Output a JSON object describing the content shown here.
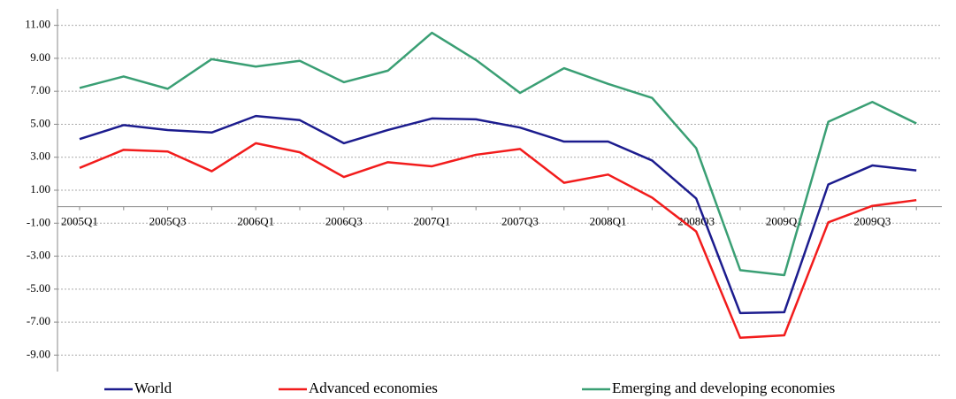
{
  "chart_data": {
    "type": "line",
    "categories": [
      "2005Q1",
      null,
      "2005Q3",
      null,
      "2006Q1",
      null,
      "2006Q3",
      null,
      "2007Q1",
      null,
      "2007Q3",
      null,
      "2008Q1",
      null,
      "2008Q3",
      null,
      "2009Q1",
      null,
      "2009Q3",
      null
    ],
    "series": [
      {
        "name": "World",
        "color": "#1c1c8e",
        "values": [
          4.1,
          4.95,
          4.65,
          4.5,
          5.5,
          5.25,
          3.85,
          4.65,
          5.35,
          5.3,
          4.8,
          3.95,
          3.95,
          2.8,
          0.5,
          -6.45,
          -6.4,
          1.35,
          2.5,
          2.2
        ]
      },
      {
        "name": "Advanced economies",
        "color": "#f21c1c",
        "values": [
          2.35,
          3.45,
          3.35,
          2.15,
          3.85,
          3.3,
          1.8,
          2.7,
          2.45,
          3.15,
          3.5,
          1.45,
          1.95,
          0.55,
          -1.5,
          -7.95,
          -7.8,
          -0.95,
          0.05,
          0.4
        ]
      },
      {
        "name": "Emerging and developing economies",
        "color": "#3a9f74",
        "values": [
          7.2,
          7.9,
          7.15,
          8.95,
          8.5,
          8.85,
          7.55,
          8.25,
          10.55,
          8.9,
          6.9,
          8.4,
          7.45,
          6.6,
          3.55,
          -3.85,
          -4.15,
          5.15,
          6.35,
          5.05
        ]
      }
    ],
    "ylim": [
      -10,
      12
    ],
    "yticks": [
      {
        "value": 11,
        "label": "11.00"
      },
      {
        "value": 9,
        "label": "9.00"
      },
      {
        "value": 7,
        "label": "7.00"
      },
      {
        "value": 5,
        "label": "5.00"
      },
      {
        "value": 3,
        "label": "3.00"
      },
      {
        "value": 1,
        "label": "1.00"
      },
      {
        "value": -1,
        "label": "-1.00"
      },
      {
        "value": -3,
        "label": "-3.00"
      },
      {
        "value": -5,
        "label": "-5.00"
      },
      {
        "value": -7,
        "label": "-7.00"
      },
      {
        "value": -9,
        "label": "-9.00"
      }
    ],
    "grid": true,
    "legend": "bottom"
  }
}
